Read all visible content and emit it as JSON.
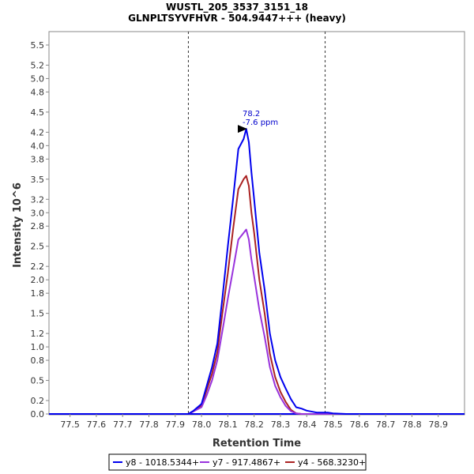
{
  "chart_data": {
    "type": "line",
    "title": "WUSTL_205_3537_3151_18",
    "subtitle": "GLNPLTSYVFHVR - 504.9447+++ (heavy)",
    "xlabel": "Retention Time",
    "ylabel": "Intensity 10^6",
    "xlim": [
      77.42,
      79.0
    ],
    "ylim": [
      0.0,
      5.7
    ],
    "x_ticks": [
      "77.5",
      "77.6",
      "77.7",
      "77.8",
      "77.9",
      "78.0",
      "78.1",
      "78.2",
      "78.3",
      "78.4",
      "78.5",
      "78.6",
      "78.7",
      "78.8",
      "78.9"
    ],
    "y_ticks": [
      "0.0",
      "0.2",
      "0.5",
      "0.8",
      "1.0",
      "1.2",
      "1.5",
      "1.8",
      "2.0",
      "2.2",
      "2.5",
      "2.8",
      "3.0",
      "3.2",
      "3.5",
      "3.8",
      "4.0",
      "4.2",
      "4.5",
      "4.8",
      "5.0",
      "5.2",
      "5.5"
    ],
    "grid": false,
    "legend_position": "bottom",
    "boundaries": [
      77.95,
      78.47
    ],
    "annotation": {
      "x": 78.18,
      "y": 4.25,
      "line1": "78.2",
      "line2": "-7.6 ppm",
      "color": "#0000cc"
    },
    "x": [
      77.42,
      77.9,
      77.95,
      77.97,
      78.0,
      78.02,
      78.04,
      78.06,
      78.08,
      78.1,
      78.12,
      78.14,
      78.16,
      78.17,
      78.18,
      78.19,
      78.2,
      78.22,
      78.24,
      78.26,
      78.28,
      78.3,
      78.32,
      78.34,
      78.36,
      78.38,
      78.4,
      78.44,
      78.48,
      78.5,
      78.55,
      79.0
    ],
    "series": [
      {
        "name": "y8 - 1018.5344+",
        "color": "#0000ee",
        "values": [
          0,
          0,
          0.0,
          0.05,
          0.15,
          0.42,
          0.7,
          1.05,
          1.75,
          2.5,
          3.2,
          3.95,
          4.1,
          4.25,
          4.05,
          3.6,
          3.2,
          2.4,
          1.85,
          1.2,
          0.8,
          0.55,
          0.38,
          0.22,
          0.1,
          0.08,
          0.05,
          0.02,
          0.02,
          0.01,
          0,
          0
        ]
      },
      {
        "name": "y7 - 917.4867+",
        "color": "#9933dd",
        "values": [
          0,
          0,
          0.0,
          0.04,
          0.1,
          0.28,
          0.5,
          0.8,
          1.25,
          1.72,
          2.15,
          2.6,
          2.7,
          2.75,
          2.6,
          2.3,
          2.05,
          1.55,
          1.15,
          0.7,
          0.42,
          0.25,
          0.12,
          0.04,
          0.01,
          0.0,
          0,
          0,
          0,
          0,
          0,
          0
        ]
      },
      {
        "name": "y4 - 568.3230+",
        "color": "#aa2222",
        "values": [
          0,
          0,
          0.0,
          0.04,
          0.12,
          0.36,
          0.6,
          0.92,
          1.52,
          2.1,
          2.75,
          3.35,
          3.5,
          3.55,
          3.4,
          3.0,
          2.7,
          2.0,
          1.5,
          0.9,
          0.55,
          0.33,
          0.18,
          0.06,
          0.01,
          0.0,
          0,
          0,
          0,
          0,
          0,
          0
        ]
      }
    ]
  }
}
